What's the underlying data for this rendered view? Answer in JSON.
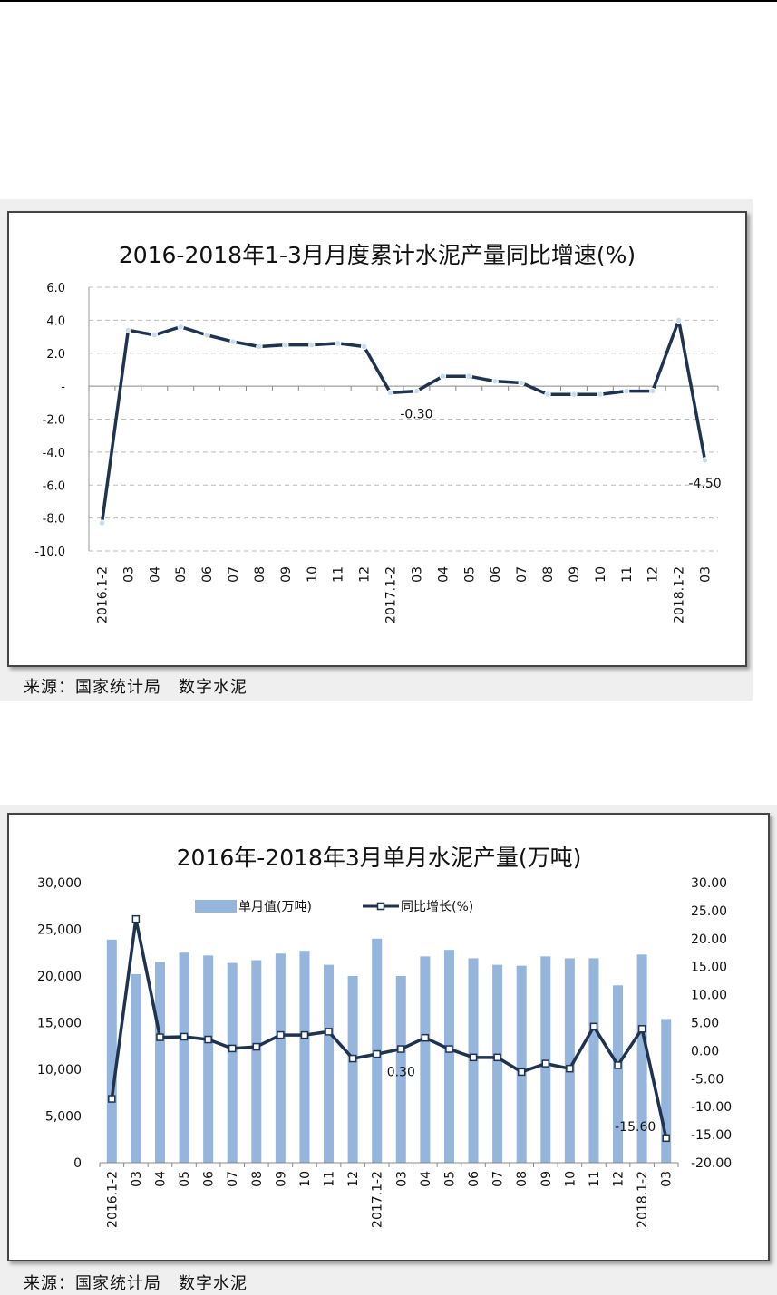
{
  "charts": [
    {
      "title": "2016-2018年1-3月月度累计水泥产量同比增速(%)",
      "source": "来源：国家统计局　数字水泥"
    },
    {
      "title": "2016年-2018年3月单月水泥产量(万吨)",
      "source": "来源：国家统计局　数字水泥"
    }
  ],
  "colors": {
    "line": "#1f3350",
    "marker_fill": "#c9dcee",
    "bar": "#95b5dc",
    "grid": "#bdbdbd"
  },
  "chart_data": [
    {
      "type": "line",
      "title": "2016-2018年1-3月月度累计水泥产量同比增速(%)",
      "categories": [
        "2016.1-2",
        "03",
        "04",
        "05",
        "06",
        "07",
        "08",
        "09",
        "10",
        "11",
        "12",
        "2017.1-2",
        "03",
        "04",
        "05",
        "06",
        "07",
        "08",
        "09",
        "10",
        "11",
        "12",
        "2018.1-2",
        "03"
      ],
      "series": [
        {
          "values": [
            -8.3,
            3.4,
            3.1,
            3.6,
            3.1,
            2.7,
            2.4,
            2.5,
            2.5,
            2.6,
            2.4,
            -0.4,
            -0.3,
            0.6,
            0.6,
            0.3,
            0.2,
            -0.5,
            -0.5,
            -0.5,
            -0.3,
            -0.3,
            4.0,
            -4.5
          ]
        }
      ],
      "ylim": [
        -10,
        6
      ],
      "yticks": [
        6,
        4,
        2,
        0,
        -2,
        -4,
        -6,
        -8,
        -10
      ],
      "ytick_labels": [
        "6.0",
        "4.0",
        "2.0",
        "-",
        "-2.0",
        "-4.0",
        "-6.0",
        "-8.0",
        "-10.0"
      ],
      "annotations": [
        {
          "index": 12,
          "text": "-0.30"
        },
        {
          "index": 23,
          "text": "-4.50"
        }
      ],
      "grid": true,
      "legend": "none"
    },
    {
      "type": "bar+line",
      "title": "2016年-2018年3月单月水泥产量(万吨)",
      "categories": [
        "2016.1-2",
        "03",
        "04",
        "05",
        "06",
        "07",
        "08",
        "09",
        "10",
        "11",
        "12",
        "2017.1-2",
        "03",
        "04",
        "05",
        "06",
        "07",
        "08",
        "09",
        "10",
        "11",
        "12",
        "2018.1-2",
        "03"
      ],
      "series": [
        {
          "name": "单月值(万吨)",
          "type": "bar",
          "axis": "left",
          "values": [
            23900,
            20200,
            21500,
            22500,
            22200,
            21400,
            21700,
            22400,
            22700,
            21200,
            20000,
            24000,
            20000,
            22100,
            22800,
            21900,
            21200,
            21100,
            22100,
            21900,
            21900,
            19000,
            22300,
            15400
          ]
        },
        {
          "name": "同比增长(%)",
          "type": "line",
          "axis": "right",
          "values": [
            -8.6,
            23.5,
            2.4,
            2.5,
            2.0,
            0.4,
            0.7,
            2.8,
            2.8,
            3.4,
            -1.4,
            -0.6,
            0.3,
            2.3,
            0.3,
            -1.2,
            -1.2,
            -3.8,
            -2.3,
            -3.2,
            4.3,
            -2.6,
            3.9,
            -15.6
          ]
        }
      ],
      "ylim_left": [
        0,
        30000
      ],
      "yticks_left": [
        "30,000",
        "25,000",
        "20,000",
        "15,000",
        "10,000",
        "5,000",
        "0"
      ],
      "ylim_right": [
        -20,
        30
      ],
      "yticks_right": [
        "30.00",
        "25.00",
        "20.00",
        "15.00",
        "10.00",
        "5.00",
        "0.00",
        "-5.00",
        "-10.00",
        "-15.00",
        "-20.00"
      ],
      "annotations": [
        {
          "index": 12,
          "text": "0.30"
        },
        {
          "index": 23,
          "text": "-15.60"
        }
      ],
      "grid": false,
      "legend": "top"
    }
  ]
}
